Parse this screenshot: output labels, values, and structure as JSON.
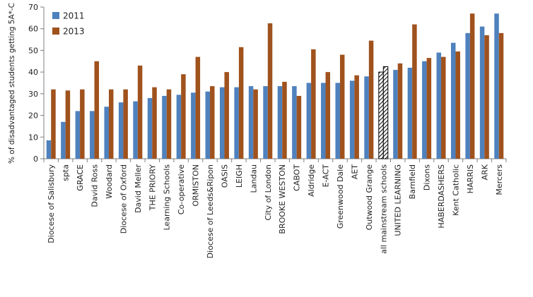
{
  "chart_data": {
    "type": "bar",
    "ylabel": "% of disadvantaged students getting 5A*-C",
    "ylim": [
      0,
      70
    ],
    "yticks": [
      0,
      10,
      20,
      30,
      40,
      50,
      60,
      70
    ],
    "grid": false,
    "legend_position": "top-left",
    "categories": [
      "Diocese of Salisbury",
      "spta",
      "GRACE",
      "David Ross",
      "Woodard",
      "Diocese of Oxford",
      "David Meller",
      "THE PRIORY",
      "Learning Schools",
      "Co-operative",
      "ORMISTON",
      "Diocese of Leeds&Ripon",
      "OASIS",
      "LEIGH",
      "Landau",
      "City of London",
      "BROOKE WESTON",
      "CABOT",
      "Aldridge",
      "E-ACT",
      "Greenwood Dale",
      "AET",
      "Outwood Grange",
      "all mainstream schools",
      "UNITED LEARNING",
      "Barnfield",
      "Dixons",
      "HABERDASHERS",
      "Kent Catholic",
      "HARRIS",
      "ARK",
      "Mercers"
    ],
    "highlight_category": "all mainstream schools",
    "series": [
      {
        "name": "2011",
        "color": "#4F81BD",
        "values": [
          8.5,
          17,
          22,
          22,
          24,
          26,
          26.5,
          28,
          29,
          29.5,
          30.5,
          31,
          33,
          33,
          33.5,
          33.5,
          33.5,
          33.5,
          35,
          35,
          35,
          36,
          38,
          40,
          41,
          42,
          45,
          49,
          53.5,
          58,
          61,
          67
        ]
      },
      {
        "name": "2013",
        "color": "#A0521D",
        "values": [
          32,
          31.5,
          32,
          45,
          32,
          32,
          43,
          33,
          32,
          39,
          47,
          33.5,
          40,
          51.5,
          32,
          62.5,
          35.5,
          29,
          50.5,
          40,
          48,
          38.5,
          54.5,
          42.5,
          44,
          62,
          46.5,
          47,
          49.5,
          67,
          57,
          58
        ]
      }
    ]
  }
}
